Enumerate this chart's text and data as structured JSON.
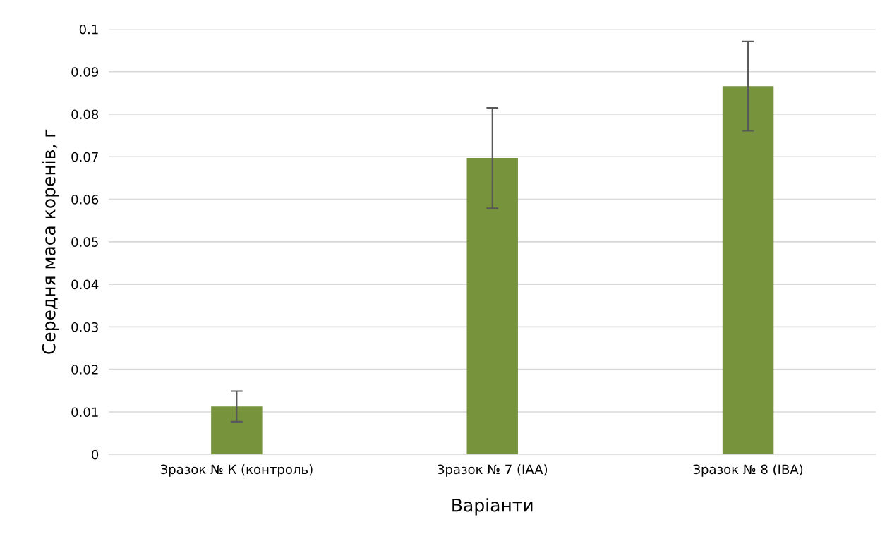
{
  "chart_data": {
    "type": "bar",
    "xlabel": "Варіанти",
    "ylabel": "Середня маса коренів, г",
    "categories": [
      "Зразок № К (контроль)",
      "Зразок № 7 (IAA)",
      "Зразок № 8 (IBA)"
    ],
    "values": [
      0.0113,
      0.0697,
      0.0866
    ],
    "errors": [
      0.0036,
      0.0118,
      0.0105
    ],
    "color": "#77933c",
    "ylim": [
      0,
      0.1
    ],
    "yticks": [
      0,
      0.01,
      0.02,
      0.03,
      0.04,
      0.05,
      0.06,
      0.07,
      0.08,
      0.09,
      0.1
    ],
    "grid": "y",
    "legend": false
  }
}
